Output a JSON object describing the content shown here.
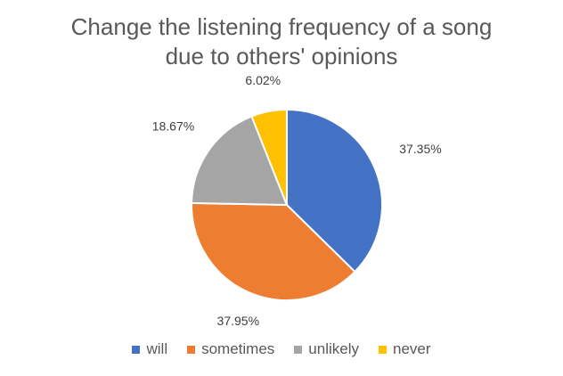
{
  "chart_data": {
    "type": "pie",
    "title_lines": [
      "Change the listening frequency of a song",
      "due to others' opinions"
    ],
    "categories": [
      "will",
      "sometimes",
      "unlikely",
      "never"
    ],
    "values": [
      37.35,
      37.95,
      18.67,
      6.02
    ],
    "labels": [
      "37.35%",
      "37.95%",
      "18.67%",
      "6.02%"
    ],
    "colors": [
      "#4472C4",
      "#ED7D31",
      "#A5A5A5",
      "#FFC000"
    ],
    "legend_position": "bottom"
  }
}
